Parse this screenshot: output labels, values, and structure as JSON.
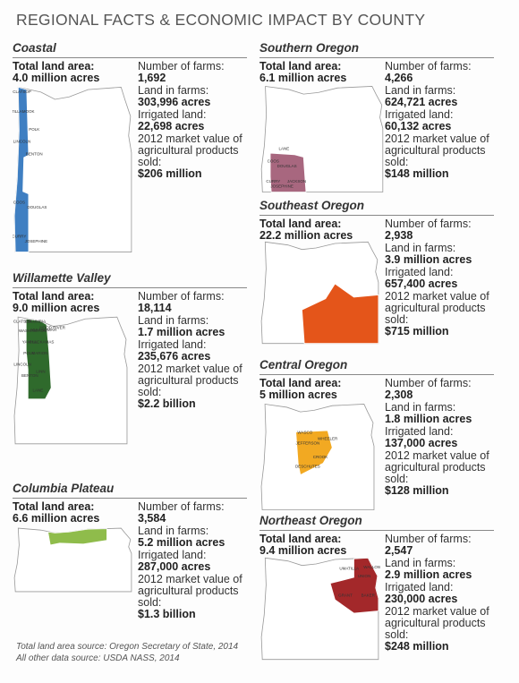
{
  "title": "REGIONAL FACTS & ECONOMIC IMPACT BY COUNTY",
  "regions": [
    {
      "name": "Coastal",
      "color": "#3f7fc2",
      "total_label": "Total land area:",
      "total_value": "4.0 million acres",
      "facts": [
        {
          "label": "Number of farms:",
          "value": "1,692"
        },
        {
          "label": "Land in farms:",
          "value": "303,996 acres"
        },
        {
          "label": "Irrigated land:",
          "value": "22,698 acres"
        },
        {
          "label": "2012 market value of agricultural products sold:",
          "value": "$206 million"
        }
      ],
      "map_labels": [
        "CLATSOP",
        "TILLAMOOK",
        "LINCOLN",
        "POLK",
        "BENTON",
        "COOS",
        "CURRY",
        "DOUGLAS",
        "JOSEPHINE"
      ]
    },
    {
      "name": "Willamette Valley",
      "color": "#2f6a2c",
      "total_label": "Total land area:",
      "total_value": "9.0 million acres",
      "facts": [
        {
          "label": "Number of farms:",
          "value": "18,114"
        },
        {
          "label": "Land in farms:",
          "value": "1.7 million acres"
        },
        {
          "label": "Irrigated land:",
          "value": "235,676 acres"
        },
        {
          "label": "2012 market value of agricultural products sold:",
          "value": "$2.2 billion"
        }
      ],
      "map_labels": [
        "CLATSOP",
        "COLUMBIA",
        "WASHINGTON",
        "MULTNOMAH",
        "HOOD RIVER",
        "YAMHILL",
        "CLACKAMAS",
        "POLK",
        "MARION",
        "LINCOLN",
        "LINN",
        "BENTON",
        "LANE"
      ]
    },
    {
      "name": "Columbia Plateau",
      "color": "#8fbc4b",
      "total_label": "Total land area:",
      "total_value": "6.6 million acres",
      "facts": [
        {
          "label": "Number of farms:",
          "value": "3,584"
        },
        {
          "label": "Land in farms:",
          "value": "5.2 million acres"
        },
        {
          "label": "Irrigated land:",
          "value": "287,000 acres"
        },
        {
          "label": "2012 market value of agricultural products sold:",
          "value": "$1.3 billion"
        }
      ],
      "map_labels": []
    },
    {
      "name": "Southern Oregon",
      "color": "#a8677f",
      "total_label": "Total land area:",
      "total_value": "6.1 million acres",
      "facts": [
        {
          "label": "Number of farms:",
          "value": "4,266"
        },
        {
          "label": "Land in farms:",
          "value": "624,721 acres"
        },
        {
          "label": "Irrigated land:",
          "value": "60,132 acres"
        },
        {
          "label": "2012 market value of agricultural products sold:",
          "value": "$148 million"
        }
      ],
      "map_labels": [
        "LANE",
        "COOS",
        "DOUGLAS",
        "CURRY",
        "JOSEPHINE",
        "JACKSON"
      ]
    },
    {
      "name": "Southeast Oregon",
      "color": "#e4551a",
      "total_label": "Total land area:",
      "total_value": "22.2 million acres",
      "facts": [
        {
          "label": "Number of farms:",
          "value": "2,938"
        },
        {
          "label": "Land in farms:",
          "value": "3.9 million acres"
        },
        {
          "label": "Irrigated land:",
          "value": "657,400 acres"
        },
        {
          "label": "2012 market value of agricultural products sold:",
          "value": "$715 million"
        }
      ],
      "map_labels": []
    },
    {
      "name": "Central Oregon",
      "color": "#f2a922",
      "total_label": "Total land area:",
      "total_value": "5 million acres",
      "facts": [
        {
          "label": "Number of farms:",
          "value": "2,308"
        },
        {
          "label": "Land in farms:",
          "value": "1.8 million acres"
        },
        {
          "label": "Irrigated land:",
          "value": "137,000 acres"
        },
        {
          "label": "2012 market value of agricultural products sold:",
          "value": "$128 million"
        }
      ],
      "map_labels": [
        "WASCO",
        "JEFFERSON",
        "WHEELER",
        "CROOK",
        "DESCHUTES"
      ]
    },
    {
      "name": "Northeast Oregon",
      "color": "#a3282a",
      "total_label": "Total land area:",
      "total_value": "9.4 million acres",
      "facts": [
        {
          "label": "Number of farms:",
          "value": "2,547"
        },
        {
          "label": "Land in farms:",
          "value": "2.9 million acres"
        },
        {
          "label": "Irrigated land:",
          "value": "230,000 acres"
        },
        {
          "label": "2012 market value of agricultural products sold:",
          "value": "$248 million"
        }
      ],
      "map_labels": [
        "UMATILLA",
        "UNION",
        "WALLOWA",
        "GRANT",
        "BAKER"
      ]
    }
  ],
  "sources": [
    "Total land area source: Oregon Secretary of State, 2014",
    "All other data source: USDA NASS, 2014"
  ]
}
